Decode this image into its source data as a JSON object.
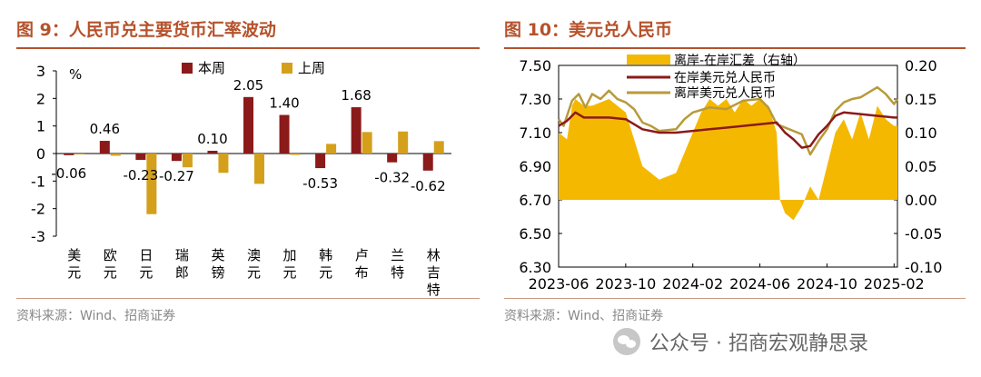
{
  "left_panel": {
    "title": "图 9：人民币兑主要货币汇率波动",
    "source": "资料来源：Wind、招商证券"
  },
  "right_panel": {
    "title": "图 10：美元兑人民币",
    "source": "资料来源：Wind、招商证券"
  },
  "watermark": {
    "text": "公众号 · 招商宏观静思录"
  },
  "colors": {
    "accent": "#b5522c",
    "this_week": "#8b1a1a",
    "last_week": "#d4a01c",
    "spread": "#f5b800",
    "onshore": "#8b1a1a",
    "offshore": "#b89a3a"
  },
  "chart_data": [
    {
      "type": "bar",
      "title": "人民币兑主要货币汇率波动",
      "ylabel": "%",
      "ylim": [
        -3,
        3
      ],
      "yticks": [
        3,
        2,
        1,
        0,
        -1,
        -2,
        -3
      ],
      "categories": [
        "美元",
        "欧元",
        "日元",
        "瑞郎",
        "英镑",
        "澳元",
        "加元",
        "韩元",
        "卢布",
        "兰特",
        "林吉特"
      ],
      "series": [
        {
          "name": "本周",
          "values": [
            -0.06,
            0.46,
            -0.23,
            -0.27,
            0.1,
            2.05,
            1.4,
            -0.53,
            1.68,
            -0.32,
            -0.62
          ]
        },
        {
          "name": "上周",
          "values": [
            0.0,
            -0.08,
            -2.2,
            -0.5,
            -0.7,
            -1.1,
            -0.05,
            0.35,
            0.78,
            0.8,
            0.45
          ]
        }
      ],
      "data_labels": [
        "-0.06",
        "0.46",
        "-0.23",
        "-0.27",
        "0.10",
        "2.05",
        "1.40",
        "-0.53",
        "1.68",
        "-0.32",
        "-0.62"
      ]
    },
    {
      "type": "line",
      "title": "美元兑人民币",
      "left_ylim": [
        6.3,
        7.5
      ],
      "left_yticks": [
        "7.50",
        "7.30",
        "7.10",
        "6.90",
        "6.70",
        "6.50",
        "6.30"
      ],
      "right_ylim": [
        -0.1,
        0.2
      ],
      "right_yticks": [
        "0.20",
        "0.15",
        "0.10",
        "0.05",
        "0.00",
        "-0.05",
        "-0.10"
      ],
      "x_ticks": [
        "2023-06",
        "2023-10",
        "2024-02",
        "2024-06",
        "2024-10",
        "2025-02"
      ],
      "x_months": [
        0,
        4,
        8,
        12,
        16,
        20
      ],
      "legend": [
        "离岸-在岸汇差（右轴）",
        "在岸美元兑人民币",
        "离岸美元兑人民币"
      ],
      "onshore": {
        "t": [
          0,
          0.5,
          1,
          1.5,
          2,
          3,
          4,
          5,
          6,
          7,
          8,
          9,
          10,
          11,
          12,
          13,
          13.5,
          14,
          14.5,
          15,
          15.5,
          16,
          16.5,
          17,
          18,
          19,
          20,
          20.2
        ],
        "v": [
          7.14,
          7.17,
          7.22,
          7.19,
          7.19,
          7.19,
          7.18,
          7.12,
          7.1,
          7.1,
          7.11,
          7.12,
          7.13,
          7.14,
          7.15,
          7.16,
          7.1,
          7.06,
          7.01,
          7.02,
          7.09,
          7.14,
          7.2,
          7.22,
          7.21,
          7.2,
          7.19,
          7.19
        ]
      },
      "offshore": {
        "t": [
          0,
          0.3,
          0.8,
          1.2,
          1.6,
          2,
          2.5,
          3,
          3.5,
          4,
          4.5,
          5,
          5.5,
          6,
          7,
          7.5,
          8,
          9,
          10,
          11,
          12,
          12.5,
          13,
          13.5,
          14,
          14.5,
          15,
          15.5,
          16,
          16.5,
          17,
          17.5,
          18,
          18.5,
          19,
          19.5,
          20,
          20.2
        ],
        "v": [
          7.18,
          7.14,
          7.29,
          7.33,
          7.25,
          7.33,
          7.3,
          7.35,
          7.3,
          7.28,
          7.24,
          7.16,
          7.14,
          7.11,
          7.12,
          7.18,
          7.22,
          7.25,
          7.24,
          7.29,
          7.3,
          7.25,
          7.15,
          7.13,
          7.11,
          7.09,
          6.97,
          7.05,
          7.12,
          7.23,
          7.28,
          7.3,
          7.31,
          7.34,
          7.37,
          7.33,
          7.27,
          7.3
        ]
      },
      "spread": {
        "t": [
          0,
          0.5,
          0.8,
          1,
          1.5,
          2,
          3,
          4,
          4.5,
          5,
          6,
          7,
          8,
          8.5,
          9,
          9.5,
          10,
          10.5,
          11,
          11.5,
          12,
          12.5,
          13,
          13.2,
          13.5,
          14,
          14.5,
          15,
          15.5,
          16,
          16.5,
          17,
          17.5,
          18,
          18.5,
          19,
          19.5,
          20,
          20.2
        ],
        "v": [
          0.1,
          0.09,
          0.14,
          0.15,
          0.14,
          0.14,
          0.15,
          0.13,
          0.09,
          0.05,
          0.03,
          0.04,
          0.1,
          0.13,
          0.15,
          0.14,
          0.15,
          0.13,
          0.15,
          0.14,
          0.15,
          0.14,
          0.1,
          0.0,
          -0.02,
          -0.03,
          -0.01,
          0.02,
          0.0,
          0.05,
          0.1,
          0.12,
          0.09,
          0.13,
          0.09,
          0.14,
          0.12,
          0.11,
          0.11
        ]
      }
    }
  ]
}
